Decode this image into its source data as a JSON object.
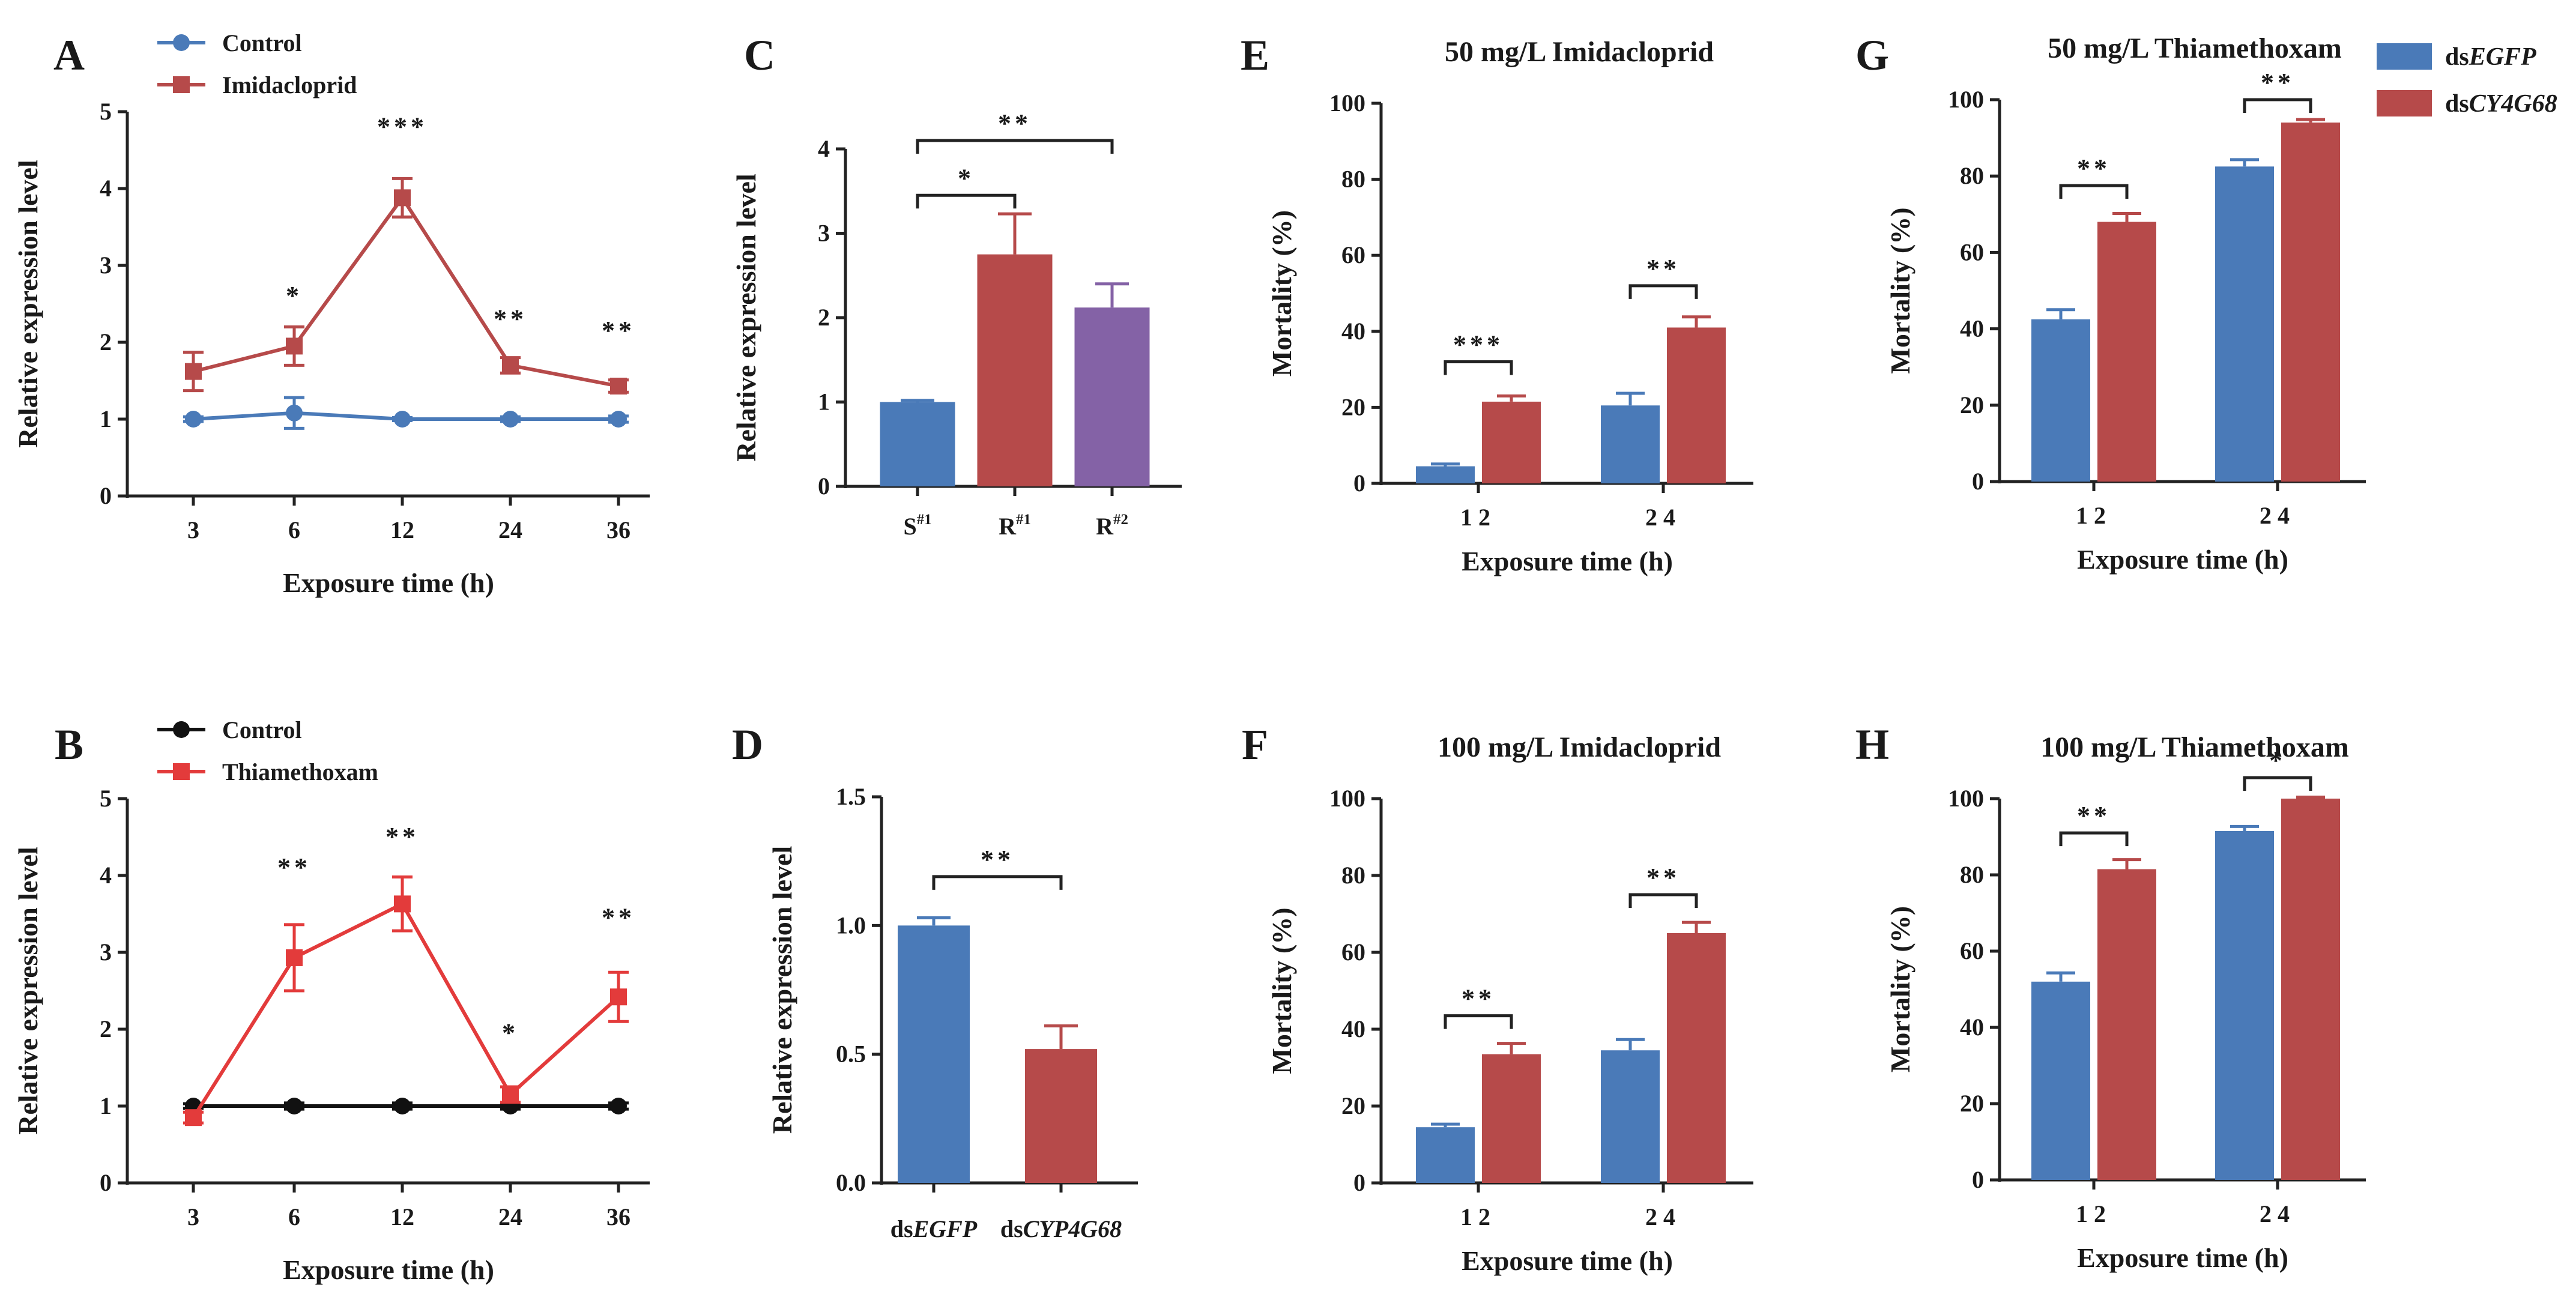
{
  "colors": {
    "blue": "#4a7ab8",
    "brick": "#b64a4a",
    "purple": "#8462a6",
    "bright_red": "#e33b3b",
    "black": "#111111",
    "axis": "#222222"
  },
  "legend_G": {
    "items": [
      {
        "prefix": "ds",
        "italic": "EGFP",
        "color": "#4a7ab8"
      },
      {
        "prefix": "ds",
        "italic": "CY4G68",
        "color": "#b64a4a"
      }
    ]
  },
  "chart_data": [
    {
      "panel": "A",
      "type": "line",
      "title": "",
      "xlabel": "Exposure time (h)",
      "ylabel": "Relative expression level",
      "categories": [
        "3",
        "6",
        "12",
        "24",
        "36"
      ],
      "ylim": [
        0,
        5
      ],
      "yticks": [
        "0",
        "1",
        "2",
        "3",
        "4",
        "5"
      ],
      "series": [
        {
          "name": "Control",
          "color": "#4a7ab8",
          "marker": "circle",
          "values": [
            1.0,
            1.08,
            1.0,
            1.0,
            1.0
          ],
          "errors": [
            0.03,
            0.2,
            0.02,
            0.03,
            0.04
          ]
        },
        {
          "name": "Imidacloprid",
          "color": "#b64a4a",
          "marker": "square",
          "values": [
            1.62,
            1.95,
            3.88,
            1.7,
            1.43
          ],
          "errors": [
            0.25,
            0.25,
            0.25,
            0.1,
            0.08
          ]
        }
      ],
      "annotations": [
        {
          "category": "6",
          "text": "*",
          "y": 2.6
        },
        {
          "category": "12",
          "text": "***",
          "y": 4.8
        },
        {
          "category": "24",
          "text": "**",
          "y": 2.3
        },
        {
          "category": "36",
          "text": "**",
          "y": 2.15
        }
      ]
    },
    {
      "panel": "B",
      "type": "line",
      "title": "",
      "xlabel": "Exposure time (h)",
      "ylabel": "Relative expression level",
      "categories": [
        "3",
        "6",
        "12",
        "24",
        "36"
      ],
      "ylim": [
        0,
        5
      ],
      "yticks": [
        "0",
        "1",
        "2",
        "3",
        "4",
        "5"
      ],
      "series": [
        {
          "name": "Control",
          "color": "#111111",
          "marker": "circle",
          "values": [
            1.0,
            1.0,
            1.0,
            1.0,
            1.0
          ],
          "errors": [
            0.03,
            0.04,
            0.04,
            0.04,
            0.04
          ]
        },
        {
          "name": "Thiamethoxam",
          "color": "#e33b3b",
          "marker": "square",
          "values": [
            0.85,
            2.93,
            3.63,
            1.15,
            2.42
          ],
          "errors": [
            0.07,
            0.43,
            0.35,
            0.1,
            0.32
          ]
        }
      ],
      "annotations": [
        {
          "category": "6",
          "text": "**",
          "y": 4.1
        },
        {
          "category": "12",
          "text": "**",
          "y": 4.5
        },
        {
          "category": "24",
          "text": "*",
          "y": 1.95
        },
        {
          "category": "36",
          "text": "**",
          "y": 3.45
        }
      ]
    },
    {
      "panel": "C",
      "type": "bar",
      "title": "",
      "xlabel": "",
      "ylabel": "Relative expression level",
      "categories": [
        {
          "main": "S",
          "sup": "#1"
        },
        {
          "main": "R",
          "sup": "#1"
        },
        {
          "main": "R",
          "sup": "#2"
        }
      ],
      "ylim": [
        0,
        4
      ],
      "yticks": [
        "0",
        "1",
        "2",
        "3",
        "4"
      ],
      "values": [
        1.0,
        2.75,
        2.12
      ],
      "errors": [
        0.02,
        0.48,
        0.28
      ],
      "colors": [
        "#4a7ab8",
        "#b64a4a",
        "#8462a6"
      ],
      "brackets": [
        {
          "from": 0,
          "to": 1,
          "y": 3.45,
          "text": "*"
        },
        {
          "from": 0,
          "to": 2,
          "y": 4.1,
          "text": "**"
        }
      ]
    },
    {
      "panel": "D",
      "type": "bar",
      "title": "",
      "xlabel": "",
      "ylabel": "Relative expression level",
      "categories": [
        {
          "prefix": "ds",
          "italic": "EGFP"
        },
        {
          "prefix": "ds",
          "italic": "CYP4G68"
        }
      ],
      "ylim": [
        0,
        1.5
      ],
      "yticks": [
        "0.0",
        "0.5",
        "1.0",
        "1.5"
      ],
      "values": [
        1.0,
        0.52
      ],
      "errors": [
        0.03,
        0.09
      ],
      "colors": [
        "#4a7ab8",
        "#b64a4a"
      ],
      "brackets": [
        {
          "from": 0,
          "to": 1,
          "y": 1.19,
          "text": "**"
        }
      ]
    },
    {
      "panel": "E",
      "type": "bar",
      "title": "50 mg/L Imidacloprid",
      "xlabel": "Exposure time (h)",
      "ylabel": "Mortality (%)",
      "categories": [
        "12",
        "24"
      ],
      "ylim": [
        0,
        100
      ],
      "yticks": [
        "0",
        "20",
        "40",
        "60",
        "80",
        "100"
      ],
      "series": [
        {
          "name": "dsEGFP",
          "color": "#4a7ab8",
          "values": [
            4.5,
            20.5
          ],
          "errors": [
            0.6,
            3.2
          ]
        },
        {
          "name": "dsCY4G68",
          "color": "#b64a4a",
          "values": [
            21.5,
            41.0
          ],
          "errors": [
            1.5,
            2.8
          ]
        }
      ],
      "brackets": [
        {
          "group": 0,
          "y": 32.0,
          "text": "***"
        },
        {
          "group": 1,
          "y": 52.0,
          "text": "**"
        }
      ]
    },
    {
      "panel": "F",
      "type": "bar",
      "title": "100 mg/L Imidacloprid",
      "xlabel": "Exposure time (h)",
      "ylabel": "Mortality (%)",
      "categories": [
        "12",
        "24"
      ],
      "ylim": [
        0,
        100
      ],
      "yticks": [
        "0",
        "20",
        "40",
        "60",
        "80",
        "100"
      ],
      "series": [
        {
          "name": "dsEGFP",
          "color": "#4a7ab8",
          "values": [
            14.5,
            34.5
          ],
          "errors": [
            0.8,
            2.8
          ]
        },
        {
          "name": "dsCY4G68",
          "color": "#b64a4a",
          "values": [
            33.5,
            65.0
          ],
          "errors": [
            2.8,
            2.8
          ]
        }
      ],
      "brackets": [
        {
          "group": 0,
          "y": 43.5,
          "text": "**"
        },
        {
          "group": 1,
          "y": 75.0,
          "text": "**"
        }
      ]
    },
    {
      "panel": "G",
      "type": "bar",
      "title": "50 mg/L Thiamethoxam",
      "xlabel": "Exposure time (h)",
      "ylabel": "Mortality (%)",
      "categories": [
        "12",
        "24"
      ],
      "ylim": [
        0,
        100
      ],
      "yticks": [
        "0",
        "20",
        "40",
        "60",
        "80",
        "100"
      ],
      "series": [
        {
          "name": "dsEGFP",
          "color": "#4a7ab8",
          "values": [
            42.5,
            82.5
          ],
          "errors": [
            2.5,
            1.8
          ]
        },
        {
          "name": "dsCY4G68",
          "color": "#b64a4a",
          "values": [
            68.0,
            94.0
          ],
          "errors": [
            2.2,
            0.8
          ]
        }
      ],
      "brackets": [
        {
          "group": 0,
          "y": 77.5,
          "text": "**"
        },
        {
          "group": 1,
          "y": 100.0,
          "text": "**"
        }
      ]
    },
    {
      "panel": "H",
      "type": "bar",
      "title": "100 mg/L Thiamethoxam",
      "xlabel": "Exposure time (h)",
      "ylabel": "Mortality (%)",
      "categories": [
        "12",
        "24"
      ],
      "ylim": [
        0,
        100
      ],
      "yticks": [
        "0",
        "20",
        "40",
        "60",
        "80",
        "100"
      ],
      "series": [
        {
          "name": "dsEGFP",
          "color": "#4a7ab8",
          "values": [
            52.0,
            91.5
          ],
          "errors": [
            2.3,
            1.2
          ]
        },
        {
          "name": "dsCY4G68",
          "color": "#b64a4a",
          "values": [
            81.5,
            100.0
          ],
          "errors": [
            2.5,
            0.4
          ]
        }
      ],
      "brackets": [
        {
          "group": 0,
          "y": 91.0,
          "text": "**"
        },
        {
          "group": 1,
          "y": 105.5,
          "text": "*"
        }
      ]
    }
  ]
}
